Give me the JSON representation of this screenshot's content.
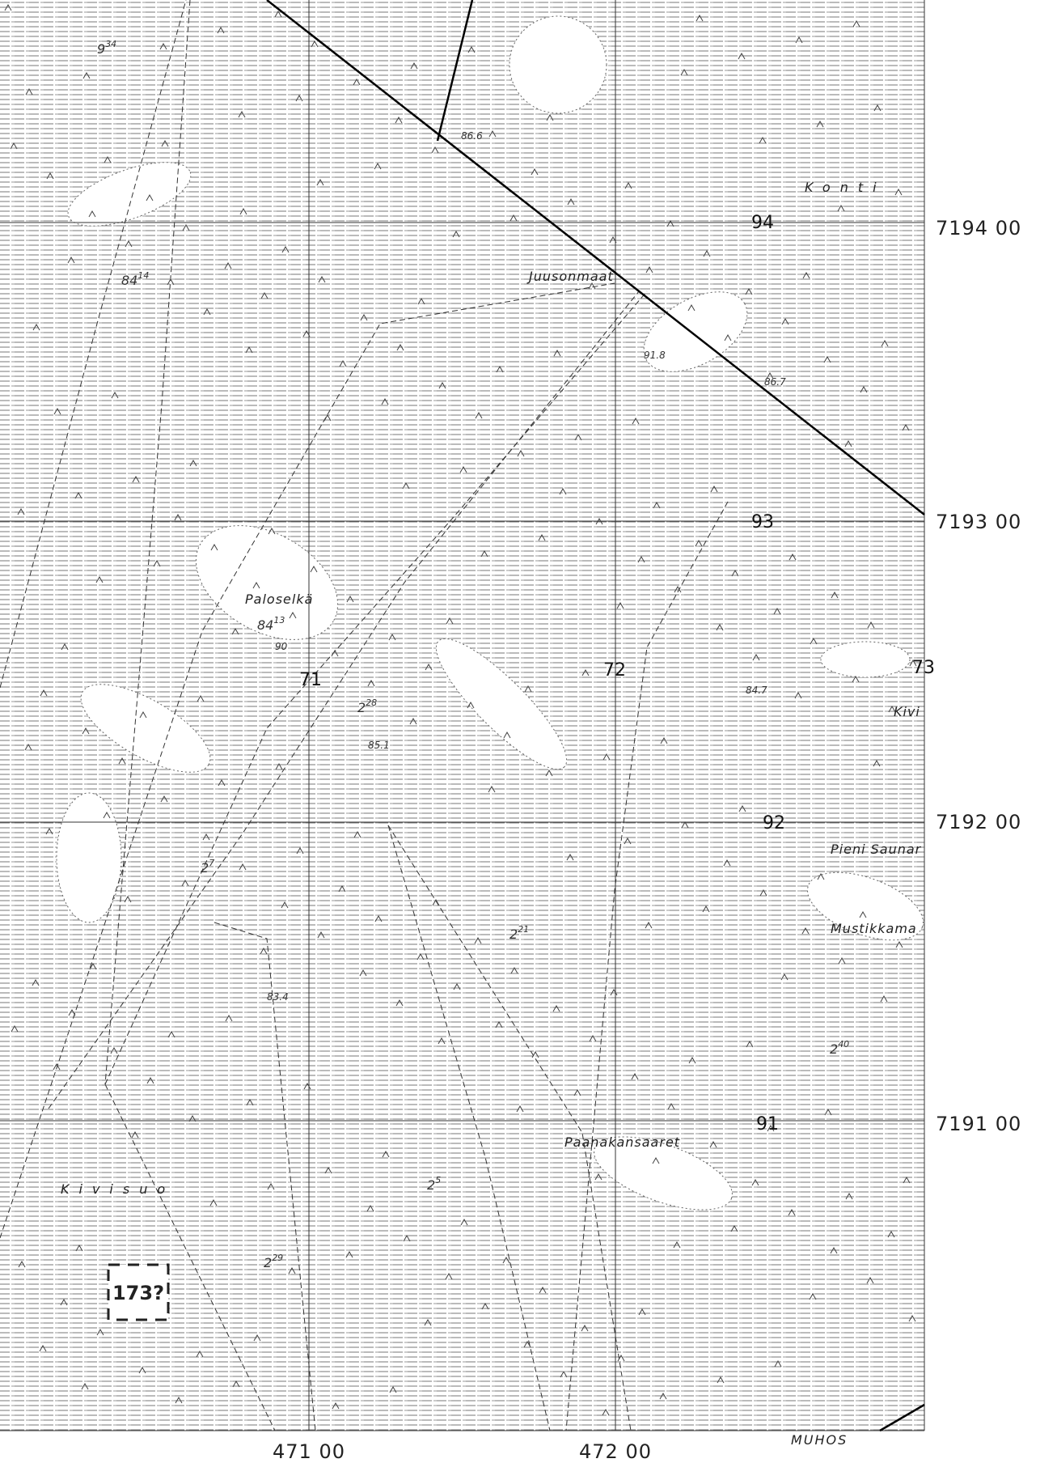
{
  "map": {
    "place_names": [
      "Konti",
      "Juusonmaat",
      "Paloselkä",
      "Kivisuo",
      "Paanakansaaret",
      "Pieni Saunar",
      "Mustikkama",
      "Kivi",
      "MUHOS"
    ],
    "grid_numbers": [
      "94",
      "93",
      "92",
      "91",
      "71",
      "72",
      "73"
    ],
    "coordinates": {
      "northing": [
        "7194 00",
        "7193 00",
        "7192 00",
        "7191 00"
      ],
      "easting": [
        "471 00",
        "472 00"
      ]
    },
    "elevations": [
      "86.6",
      "91.8",
      "86.7",
      "84.7",
      "85.1",
      "83.4",
      "90"
    ],
    "heights": [
      {
        "base": "9",
        "sup": "34"
      },
      {
        "base": "84",
        "sup": "14"
      },
      {
        "base": "84",
        "sup": "13"
      },
      {
        "base": "2",
        "sup": "28"
      },
      {
        "base": "2",
        "sup": "7"
      },
      {
        "base": "2",
        "sup": "21"
      },
      {
        "base": "2",
        "sup": "40"
      },
      {
        "base": "2",
        "sup": "5"
      },
      {
        "base": "2",
        "sup": "29"
      }
    ],
    "parcel": "173?"
  }
}
